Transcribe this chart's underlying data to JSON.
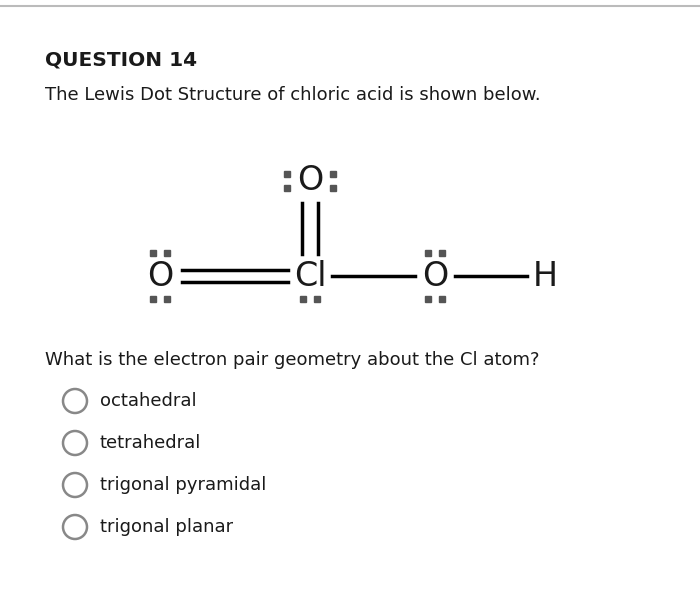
{
  "title": "QUESTION 14",
  "subtitle": "The Lewis Dot Structure of chloric acid is shown below.",
  "question": "What is the electron pair geometry about the Cl atom?",
  "choices": [
    "octahedral",
    "tetrahedral",
    "trigonal pyramidal",
    "trigonal planar"
  ],
  "bg_color": "#ffffff",
  "text_color": "#1a1a1a",
  "dot_color": "#555555",
  "atom_color": "#1a1a1a",
  "top_bar_color": "#bbbbbb",
  "figwidth": 7.0,
  "figheight": 6.06,
  "dpi": 100
}
